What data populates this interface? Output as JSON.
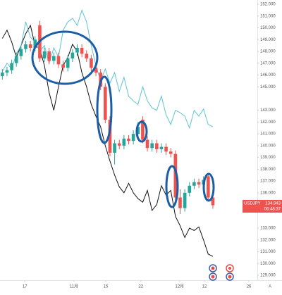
{
  "chart_data": {
    "type": "candlestick",
    "ylim": [
      128.76,
      152.36
    ],
    "xlim": [
      -0.5,
      54.5
    ],
    "yticks": [
      {
        "value": 152,
        "label": "152.000"
      },
      {
        "value": 151,
        "label": "151.000"
      },
      {
        "value": 150,
        "label": "150.000"
      },
      {
        "value": 149,
        "label": "149.000"
      },
      {
        "value": 148,
        "label": "148.000"
      },
      {
        "value": 147,
        "label": "147.000"
      },
      {
        "value": 146,
        "label": "146.000"
      },
      {
        "value": 145,
        "label": "145.000"
      },
      {
        "value": 143,
        "label": "143.000"
      },
      {
        "value": 142,
        "label": "142.000"
      },
      {
        "value": 141,
        "label": "141.000"
      },
      {
        "value": 140,
        "label": "140.000"
      },
      {
        "value": 139,
        "label": "139.000"
      },
      {
        "value": 138,
        "label": "138.000"
      },
      {
        "value": 137,
        "label": "137.000"
      },
      {
        "value": 136,
        "label": "136.000"
      },
      {
        "value": 133,
        "label": "133.000"
      },
      {
        "value": 132,
        "label": "132.000"
      },
      {
        "value": 131,
        "label": "131.000"
      },
      {
        "value": 130,
        "label": "130.000"
      },
      {
        "value": 129,
        "label": "129.000"
      }
    ],
    "xticks": [
      {
        "value": 4.8,
        "label": "17"
      },
      {
        "value": 15.3,
        "label": "11月"
      },
      {
        "value": 22.1,
        "label": "15"
      },
      {
        "value": 29.6,
        "label": "22"
      },
      {
        "value": 37.9,
        "label": "12月"
      },
      {
        "value": 43.2,
        "label": "12"
      },
      {
        "value": 52.7,
        "label": "26"
      }
    ],
    "grid": false,
    "up_color": "#26a69a",
    "down_color": "#ef5350",
    "open": [
      145.9,
      146.2,
      146.4,
      147.0,
      147.6,
      148.2,
      148.6,
      148.3,
      150.2,
      147.4,
      148.0,
      147.2,
      147.6,
      146.9,
      146.6,
      147.4,
      147.9,
      148.3,
      147.8,
      147.4,
      146.6,
      146.2,
      145.0,
      142.2,
      139.4,
      140.2,
      140.0,
      140.6,
      140.4,
      141.0,
      142.2,
      140.5,
      139.8,
      140.2,
      139.7,
      139.9,
      139.5,
      139.3,
      135.6,
      134.7,
      136.0,
      136.6,
      136.9,
      136.7,
      137.4,
      135.6
    ],
    "high": [
      146.5,
      146.7,
      147.3,
      147.9,
      148.5,
      148.9,
      148.9,
      149.3,
      150.6,
      148.3,
      148.3,
      147.9,
      147.9,
      147.2,
      147.7,
      148.2,
      148.6,
      148.6,
      148.1,
      147.7,
      146.9,
      146.5,
      145.3,
      142.5,
      140.5,
      140.5,
      140.9,
      140.9,
      141.3,
      142.0,
      142.5,
      140.8,
      140.5,
      140.5,
      140.2,
      140.2,
      139.8,
      139.6,
      136.3,
      136.3,
      136.9,
      137.2,
      137.2,
      137.4,
      137.7,
      135.9
    ],
    "low": [
      145.6,
      145.9,
      146.1,
      146.7,
      147.3,
      147.9,
      148.0,
      148.0,
      147.1,
      147.1,
      146.9,
      146.9,
      146.6,
      146.3,
      146.3,
      147.1,
      147.6,
      147.5,
      147.1,
      146.3,
      145.9,
      144.7,
      141.9,
      139.1,
      138.4,
      139.7,
      139.7,
      140.1,
      140.1,
      140.7,
      140.2,
      139.5,
      139.5,
      139.4,
      139.4,
      139.2,
      139.0,
      135.3,
      134.2,
      134.4,
      135.7,
      136.3,
      136.4,
      136.4,
      135.3,
      134.64
    ],
    "close": [
      146.2,
      146.4,
      147.0,
      147.6,
      148.2,
      148.6,
      148.3,
      149.0,
      147.4,
      148.0,
      147.2,
      147.6,
      146.9,
      146.6,
      147.4,
      147.9,
      148.3,
      147.8,
      147.4,
      146.6,
      146.2,
      145.0,
      142.2,
      139.4,
      140.2,
      140.0,
      140.6,
      140.4,
      141.0,
      141.6,
      140.5,
      139.8,
      140.2,
      139.7,
      139.9,
      139.5,
      139.3,
      135.6,
      134.7,
      136.0,
      136.6,
      136.9,
      136.7,
      137.1,
      135.6,
      134.94
    ],
    "series": [
      {
        "color": "#111111",
        "values": [
          149.1,
          149.8,
          148.8,
          147.5,
          148.5,
          149.5,
          150.2,
          148.5,
          148.2,
          146.8,
          144.5,
          143.0,
          145.0,
          146.8,
          147.5,
          148.6,
          148.0,
          146.2,
          145.0,
          143.5,
          142.5,
          141.6,
          140.0,
          138.7,
          137.5,
          136.5,
          136.0,
          136.8,
          136.0,
          135.5,
          135.2,
          136.2,
          134.5,
          135.0,
          136.6,
          135.8,
          136.2,
          134.0,
          133.2,
          132.2,
          133.0,
          132.8,
          133.1,
          132.0,
          130.8,
          130.6
        ]
      },
      {
        "color": "#5ec4d6",
        "values": [
          146.3,
          147.0,
          146.5,
          147.8,
          148.5,
          150.5,
          149.2,
          148.8,
          148.0,
          148.5,
          147.0,
          148.3,
          147.5,
          149.8,
          150.5,
          150.8,
          150.2,
          151.5,
          150.5,
          148.5,
          146.8,
          145.5,
          146.5,
          145.3,
          146.2,
          144.6,
          145.8,
          144.2,
          143.8,
          143.5,
          145.0,
          143.8,
          143.2,
          143.0,
          144.2,
          142.6,
          141.8,
          143.0,
          142.8,
          142.5,
          141.5,
          143.0,
          142.5,
          143.1,
          141.8,
          141.6
        ]
      }
    ],
    "price_label": {
      "symbol": "USDJPY",
      "price": "134.943",
      "time": "06:48:37"
    },
    "scale_button": "A"
  }
}
